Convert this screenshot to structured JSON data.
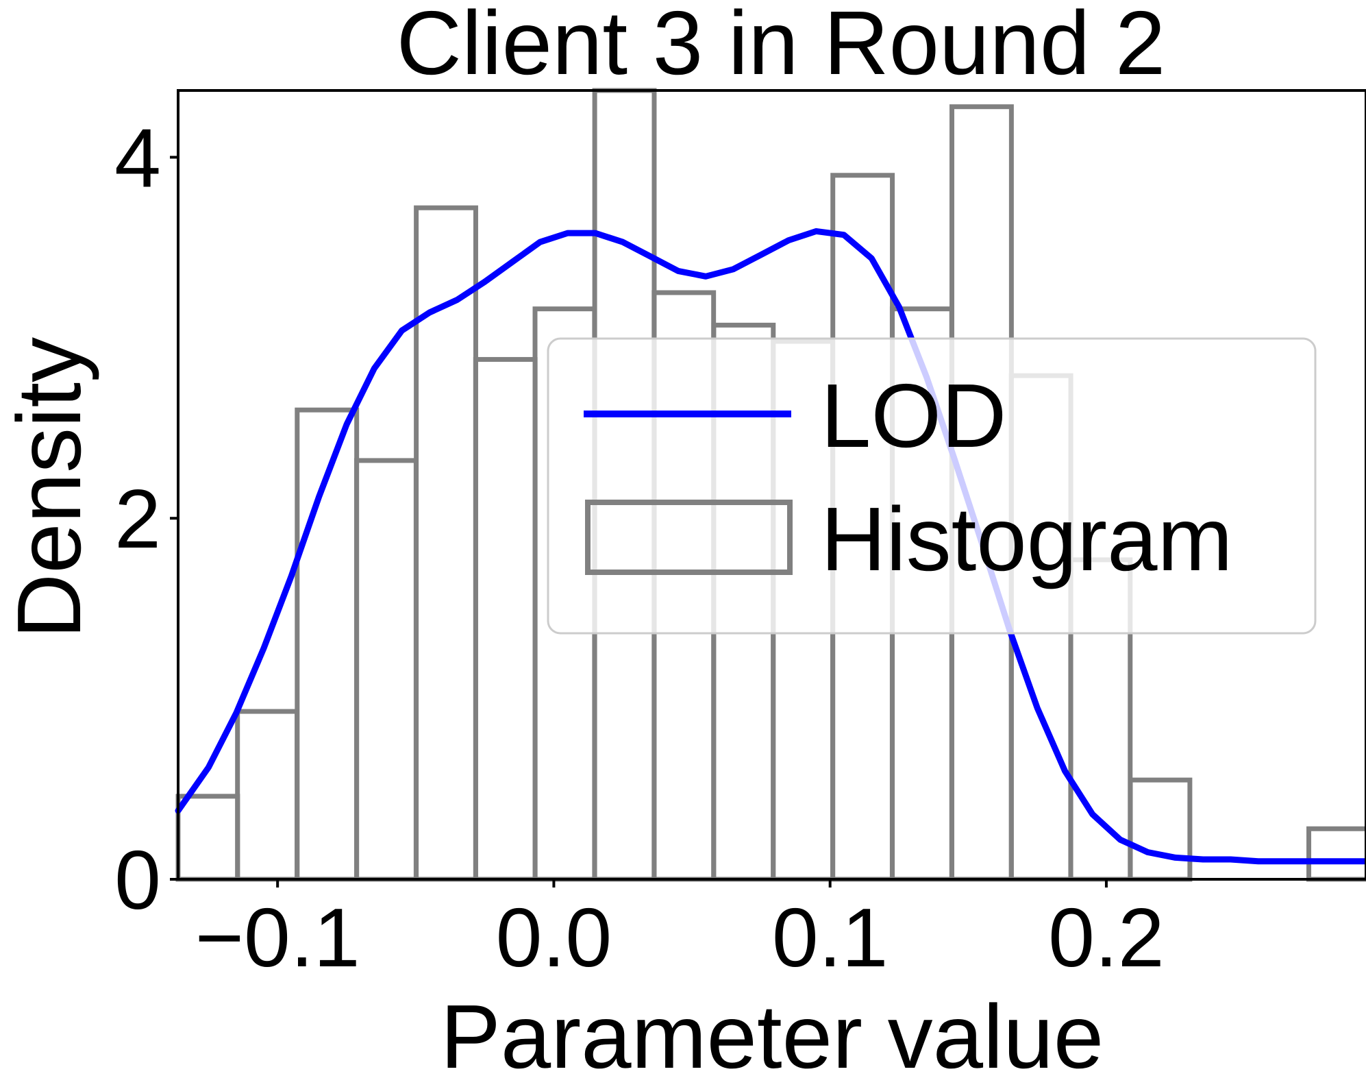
{
  "chart_data": {
    "type": "bar",
    "title": "Client 3 in Round 2",
    "xlabel": "Parameter value",
    "ylabel": "Density",
    "xlim": [
      -0.136,
      0.294
    ],
    "ylim": [
      0,
      4.37
    ],
    "xticks": [
      -0.1,
      0.0,
      0.1,
      0.2
    ],
    "xtick_labels": [
      "−0.1",
      "0.0",
      "0.1",
      "0.2"
    ],
    "yticks": [
      0,
      2,
      4
    ],
    "ytick_labels": [
      "0",
      "2",
      "4"
    ],
    "grid": false,
    "legend": {
      "placement": "center-right",
      "entries": [
        "LOD",
        "Histogram"
      ]
    },
    "colors": {
      "line": "#0000ff",
      "histogram_edge": "#808080",
      "histogram_edge_overlap": "#404040"
    },
    "histogram": {
      "name": "Histogram",
      "bin_width": 0.02154,
      "bin_starts": [
        -0.136,
        -0.1145,
        -0.0929,
        -0.0714,
        -0.0498,
        -0.0283,
        -0.0068,
        0.0148,
        0.0363,
        0.0579,
        0.0794,
        0.101,
        0.1225,
        0.1441,
        0.1656,
        0.1871,
        0.2087,
        0.2302,
        0.2518,
        0.2733
      ],
      "densities": [
        0.46,
        0.93,
        2.6,
        2.32,
        3.72,
        2.88,
        3.16,
        4.37,
        3.25,
        3.07,
        2.98,
        3.9,
        3.16,
        4.28,
        2.79,
        1.77,
        0.55,
        0.0,
        0.0,
        0.28
      ]
    },
    "series": [
      {
        "name": "LOD",
        "x": [
          -0.136,
          -0.125,
          -0.115,
          -0.105,
          -0.095,
          -0.085,
          -0.075,
          -0.065,
          -0.055,
          -0.045,
          -0.035,
          -0.025,
          -0.015,
          -0.005,
          0.005,
          0.015,
          0.025,
          0.035,
          0.045,
          0.055,
          0.065,
          0.075,
          0.085,
          0.095,
          0.105,
          0.115,
          0.125,
          0.135,
          0.145,
          0.155,
          0.165,
          0.175,
          0.185,
          0.195,
          0.205,
          0.215,
          0.225,
          0.235,
          0.245,
          0.255,
          0.265,
          0.275,
          0.285,
          0.294
        ],
        "y": [
          0.38,
          0.62,
          0.92,
          1.28,
          1.68,
          2.12,
          2.52,
          2.83,
          3.04,
          3.14,
          3.21,
          3.31,
          3.42,
          3.53,
          3.58,
          3.58,
          3.53,
          3.45,
          3.37,
          3.34,
          3.38,
          3.46,
          3.54,
          3.59,
          3.57,
          3.44,
          3.17,
          2.78,
          2.33,
          1.86,
          1.38,
          0.95,
          0.6,
          0.36,
          0.22,
          0.15,
          0.12,
          0.11,
          0.11,
          0.1,
          0.1,
          0.1,
          0.1,
          0.1
        ]
      }
    ]
  }
}
